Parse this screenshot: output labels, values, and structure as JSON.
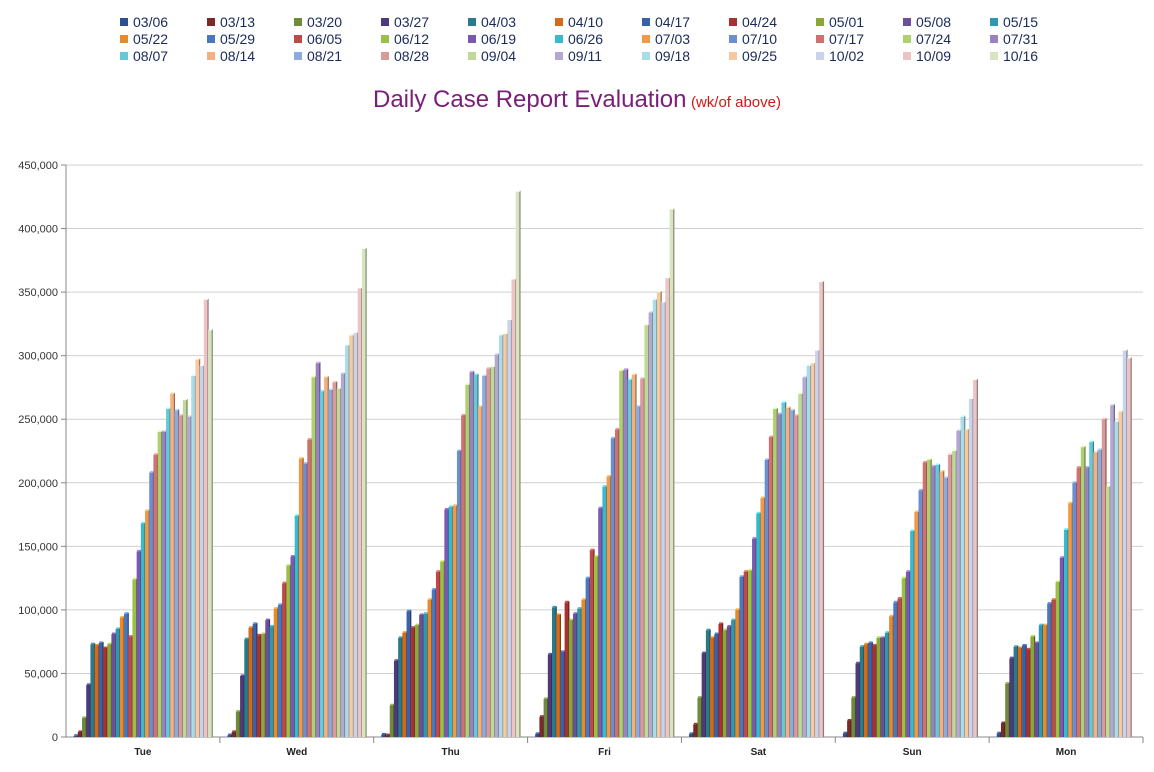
{
  "chart_data": {
    "type": "bar",
    "title": "Daily Case Report Evaluation",
    "subtitle": "(wk/of above)",
    "xlabel": "",
    "ylabel": "",
    "ylim": [
      0,
      450000
    ],
    "yticks": [
      "0",
      "50,000",
      "100,000",
      "150,000",
      "200,000",
      "250,000",
      "300,000",
      "350,000",
      "400,000",
      "450,000"
    ],
    "grid": true,
    "legend_position": "top",
    "categories": [
      "Tue",
      "Wed",
      "Thu",
      "Fri",
      "Sat",
      "Sun",
      "Mon"
    ],
    "series": [
      {
        "name": "03/06",
        "color": "#2f4f8f",
        "values": [
          1000,
          1500,
          2000,
          2500,
          2500,
          3000,
          3000
        ]
      },
      {
        "name": "03/13",
        "color": "#7a2828",
        "values": [
          4000,
          4000,
          1500,
          16000,
          10000,
          13000,
          11000
        ]
      },
      {
        "name": "03/20",
        "color": "#6e8a3a",
        "values": [
          15000,
          20000,
          25000,
          30000,
          31000,
          31000,
          42000
        ]
      },
      {
        "name": "03/27",
        "color": "#4e3a7a",
        "values": [
          41000,
          48000,
          60000,
          65000,
          66000,
          58000,
          62000
        ]
      },
      {
        "name": "04/03",
        "color": "#2a7a8a",
        "values": [
          73000,
          77000,
          78000,
          102000,
          84000,
          71000,
          71000
        ]
      },
      {
        "name": "04/10",
        "color": "#d46a1a",
        "values": [
          72000,
          86000,
          82000,
          96000,
          78000,
          73000,
          70000
        ]
      },
      {
        "name": "04/17",
        "color": "#3a62a8",
        "values": [
          74000,
          89000,
          99000,
          67000,
          81000,
          74000,
          72000
        ]
      },
      {
        "name": "04/24",
        "color": "#a83232",
        "values": [
          70000,
          80000,
          86000,
          106000,
          89000,
          72000,
          69000
        ]
      },
      {
        "name": "05/01",
        "color": "#8aa83a",
        "values": [
          73000,
          81000,
          88000,
          92000,
          84000,
          78000,
          79000
        ]
      },
      {
        "name": "05/08",
        "color": "#6e4e98",
        "values": [
          81000,
          92000,
          96000,
          97000,
          87000,
          78000,
          74000
        ]
      },
      {
        "name": "05/15",
        "color": "#2e98b0",
        "values": [
          85000,
          87000,
          97000,
          101000,
          92000,
          82000,
          88000
        ]
      },
      {
        "name": "05/22",
        "color": "#e88a2a",
        "values": [
          94000,
          101000,
          108000,
          108000,
          100000,
          95000,
          88000
        ]
      },
      {
        "name": "05/29",
        "color": "#4a78c0",
        "values": [
          97000,
          104000,
          116000,
          125000,
          126000,
          106000,
          105000
        ]
      },
      {
        "name": "06/05",
        "color": "#c04848",
        "values": [
          79000,
          121000,
          130000,
          147000,
          130000,
          109000,
          108000
        ]
      },
      {
        "name": "06/12",
        "color": "#9ac048",
        "values": [
          124000,
          135000,
          138000,
          142000,
          131000,
          125000,
          122000
        ]
      },
      {
        "name": "06/19",
        "color": "#7a5ab0",
        "values": [
          146000,
          142000,
          179000,
          180000,
          156000,
          130000,
          141000
        ]
      },
      {
        "name": "06/26",
        "color": "#3ab8cc",
        "values": [
          168000,
          174000,
          181000,
          197000,
          176000,
          162000,
          163000
        ]
      },
      {
        "name": "07/03",
        "color": "#f09a48",
        "values": [
          178000,
          219000,
          182000,
          205000,
          188000,
          177000,
          184000
        ]
      },
      {
        "name": "07/10",
        "color": "#6a8ed0",
        "values": [
          208000,
          215000,
          225000,
          235000,
          218000,
          194000,
          200000
        ]
      },
      {
        "name": "07/17",
        "color": "#d07070",
        "values": [
          222000,
          234000,
          253000,
          242000,
          236000,
          216000,
          212000
        ]
      },
      {
        "name": "07/24",
        "color": "#aed070",
        "values": [
          240000,
          283000,
          277000,
          288000,
          258000,
          218000,
          228000
        ]
      },
      {
        "name": "07/31",
        "color": "#9a82c0",
        "values": [
          240000,
          294000,
          287000,
          289000,
          254000,
          213000,
          212000
        ]
      },
      {
        "name": "08/07",
        "color": "#68c8d8",
        "values": [
          258000,
          272000,
          285000,
          281000,
          263000,
          214000,
          232000
        ]
      },
      {
        "name": "08/14",
        "color": "#f4b080",
        "values": [
          270000,
          283000,
          260000,
          285000,
          259000,
          209000,
          224000
        ]
      },
      {
        "name": "08/21",
        "color": "#8eaad8",
        "values": [
          257000,
          273000,
          284000,
          260000,
          257000,
          204000,
          226000
        ]
      },
      {
        "name": "08/28",
        "color": "#d89a9a",
        "values": [
          253000,
          279000,
          290000,
          282000,
          253000,
          222000,
          250000
        ]
      },
      {
        "name": "09/04",
        "color": "#c0d898",
        "values": [
          265000,
          274000,
          291000,
          324000,
          270000,
          225000,
          197000
        ]
      },
      {
        "name": "09/11",
        "color": "#b4a8d0",
        "values": [
          252000,
          286000,
          301000,
          334000,
          283000,
          241000,
          261000
        ]
      },
      {
        "name": "09/18",
        "color": "#a8dce6",
        "values": [
          284000,
          308000,
          316000,
          344000,
          292000,
          252000,
          248000
        ]
      },
      {
        "name": "09/25",
        "color": "#f8c8a0",
        "values": [
          297000,
          316000,
          317000,
          350000,
          294000,
          242000,
          256000
        ]
      },
      {
        "name": "10/02",
        "color": "#c8d4ec",
        "values": [
          292000,
          318000,
          328000,
          342000,
          304000,
          266000,
          304000
        ]
      },
      {
        "name": "10/09",
        "color": "#ecc4c4",
        "values": [
          344000,
          353000,
          360000,
          361000,
          358000,
          281000,
          298000
        ]
      },
      {
        "name": "10/16",
        "color": "#d8e4c0",
        "values": [
          320000,
          384000,
          429000,
          415000,
          0,
          0,
          0
        ]
      }
    ]
  }
}
